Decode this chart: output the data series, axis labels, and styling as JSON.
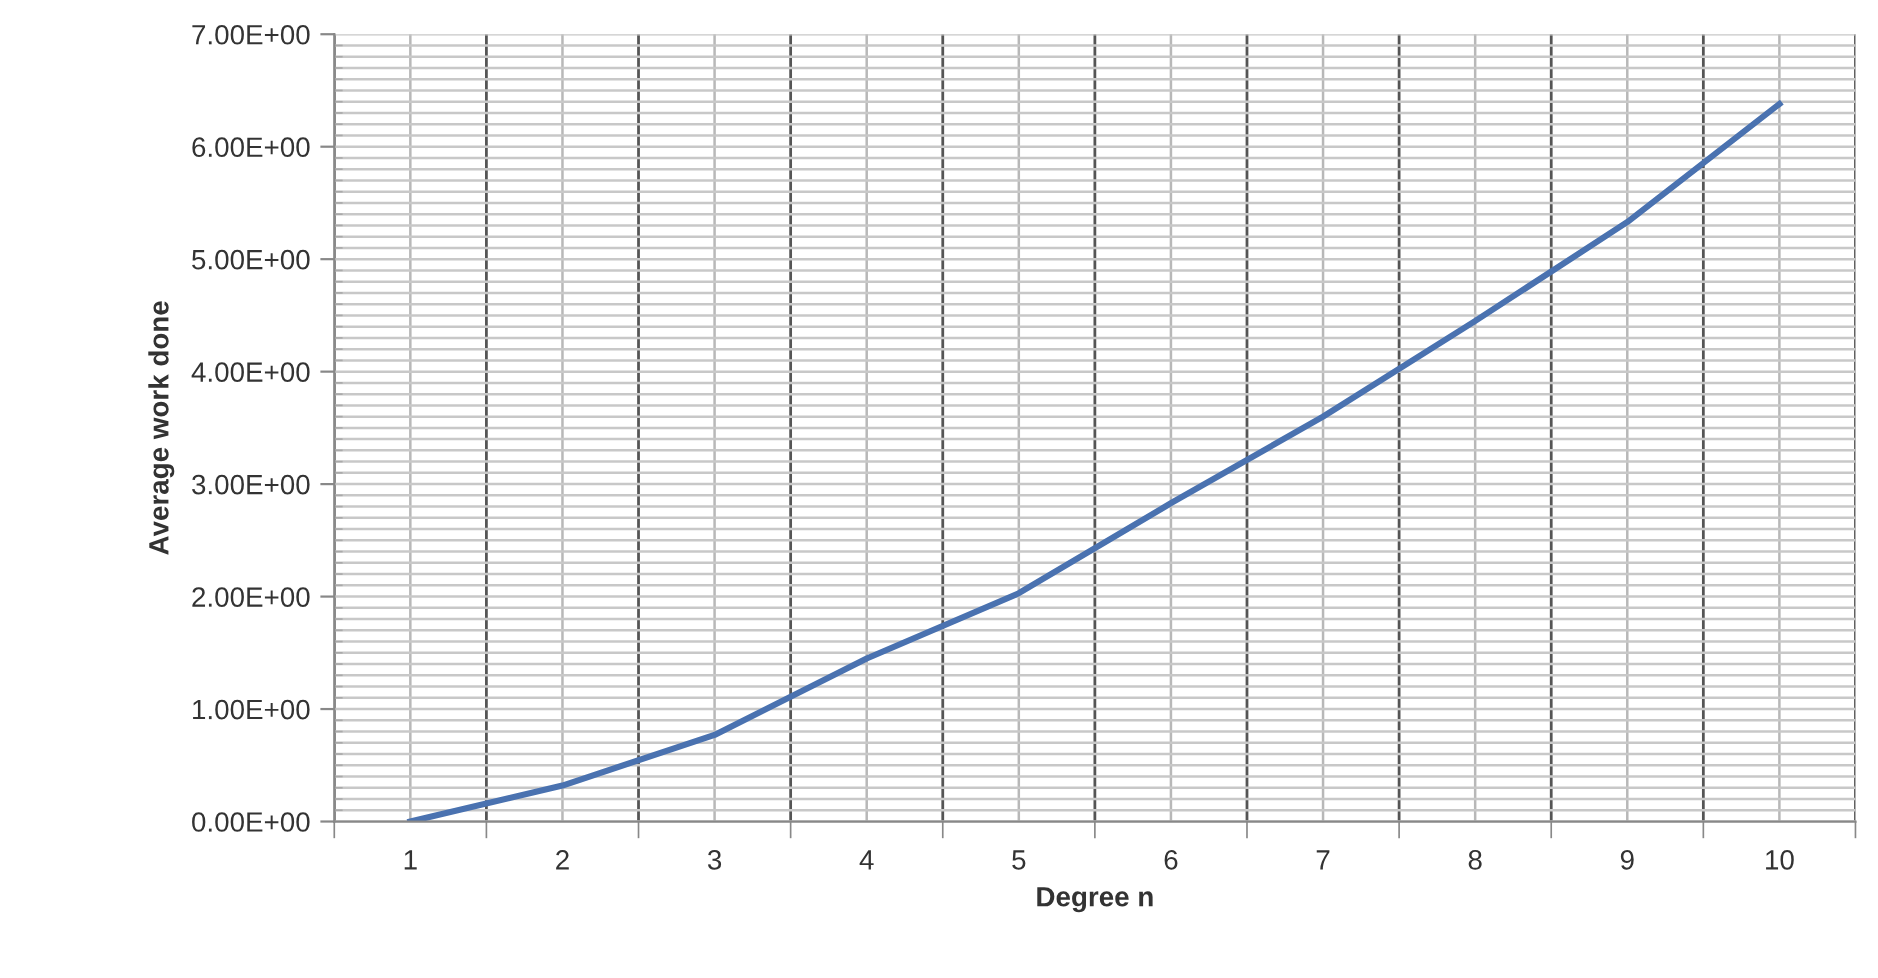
{
  "chart_data": {
    "type": "line",
    "xlabel": "Degree n",
    "ylabel": "Average work done",
    "categories": [
      "1",
      "2",
      "3",
      "4",
      "5",
      "6",
      "7",
      "8",
      "9",
      "10"
    ],
    "series": [
      {
        "color": "#4a72b0",
        "values": [
          0.0,
          0.32,
          0.77,
          1.45,
          2.03,
          2.83,
          3.6,
          4.45,
          5.33,
          6.38
        ]
      }
    ],
    "ylim": [
      0,
      7
    ],
    "yticks": [
      {
        "value": 0,
        "label": "0.00E+00"
      },
      {
        "value": 1,
        "label": "1.00E+00"
      },
      {
        "value": 2,
        "label": "2.00E+00"
      },
      {
        "value": 3,
        "label": "3.00E+00"
      },
      {
        "value": 4,
        "label": "4.00E+00"
      },
      {
        "value": 5,
        "label": "5.00E+00"
      },
      {
        "value": 6,
        "label": "6.00E+00"
      },
      {
        "value": 7,
        "label": "7.00E+00"
      }
    ],
    "grid": true,
    "marker": "none",
    "line_style": "solid"
  }
}
